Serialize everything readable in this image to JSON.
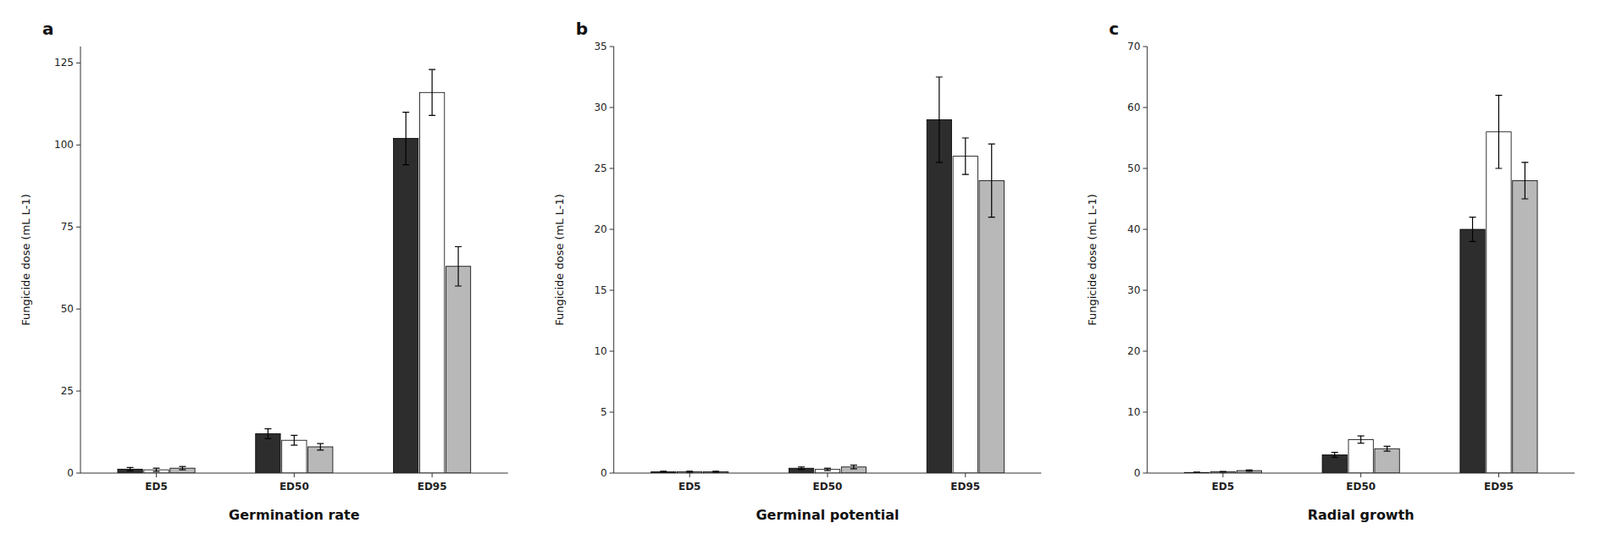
{
  "chart_data": [
    {
      "type": "bar",
      "title": "a",
      "x_label": "Germination rate",
      "y_label": "Fungicide dose (mL L-1)",
      "categories": [
        "ED5",
        "ED50",
        "ED95"
      ],
      "ylim": [
        0,
        130
      ],
      "yticks": [
        0,
        25,
        50,
        75,
        100,
        125
      ],
      "grid": false,
      "series": [
        {
          "color": "#2d2d2d",
          "values": [
            1.2,
            12.0,
            102.0
          ],
          "errors": [
            0.5,
            1.5,
            8.0
          ]
        },
        {
          "color": "#ffffff",
          "values": [
            1.0,
            10.0,
            116.0
          ],
          "errors": [
            0.5,
            1.5,
            7.0
          ]
        },
        {
          "color": "#b8b8b8",
          "values": [
            1.5,
            8.0,
            63.0
          ],
          "errors": [
            0.5,
            1.0,
            6.0
          ]
        }
      ]
    },
    {
      "type": "bar",
      "title": "b",
      "x_label": "Germinal potential",
      "y_label": "Fungicide dose (mL L-1)",
      "categories": [
        "ED5",
        "ED50",
        "ED95"
      ],
      "ylim": [
        0,
        35
      ],
      "yticks": [
        0,
        5,
        10,
        15,
        20,
        25,
        30,
        35
      ],
      "grid": false,
      "series": [
        {
          "color": "#2d2d2d",
          "values": [
            0.1,
            0.4,
            29.0
          ],
          "errors": [
            0.05,
            0.1,
            3.5
          ]
        },
        {
          "color": "#ffffff",
          "values": [
            0.1,
            0.3,
            26.0
          ],
          "errors": [
            0.05,
            0.1,
            1.5
          ]
        },
        {
          "color": "#b8b8b8",
          "values": [
            0.1,
            0.5,
            24.0
          ],
          "errors": [
            0.05,
            0.15,
            3.0
          ]
        }
      ]
    },
    {
      "type": "bar",
      "title": "c",
      "x_label": "Radial growth",
      "y_label": "Fungicide dose (mL L-1)",
      "categories": [
        "ED5",
        "ED50",
        "ED95"
      ],
      "ylim": [
        0,
        70
      ],
      "yticks": [
        0,
        10,
        20,
        30,
        40,
        50,
        60,
        70
      ],
      "grid": false,
      "series": [
        {
          "color": "#2d2d2d",
          "values": [
            0.1,
            3.0,
            40.0
          ],
          "errors": [
            0.05,
            0.4,
            2.0
          ]
        },
        {
          "color": "#ffffff",
          "values": [
            0.2,
            5.5,
            56.0
          ],
          "errors": [
            0.05,
            0.6,
            6.0
          ]
        },
        {
          "color": "#b8b8b8",
          "values": [
            0.4,
            4.0,
            48.0
          ],
          "errors": [
            0.1,
            0.4,
            3.0
          ]
        }
      ]
    }
  ]
}
